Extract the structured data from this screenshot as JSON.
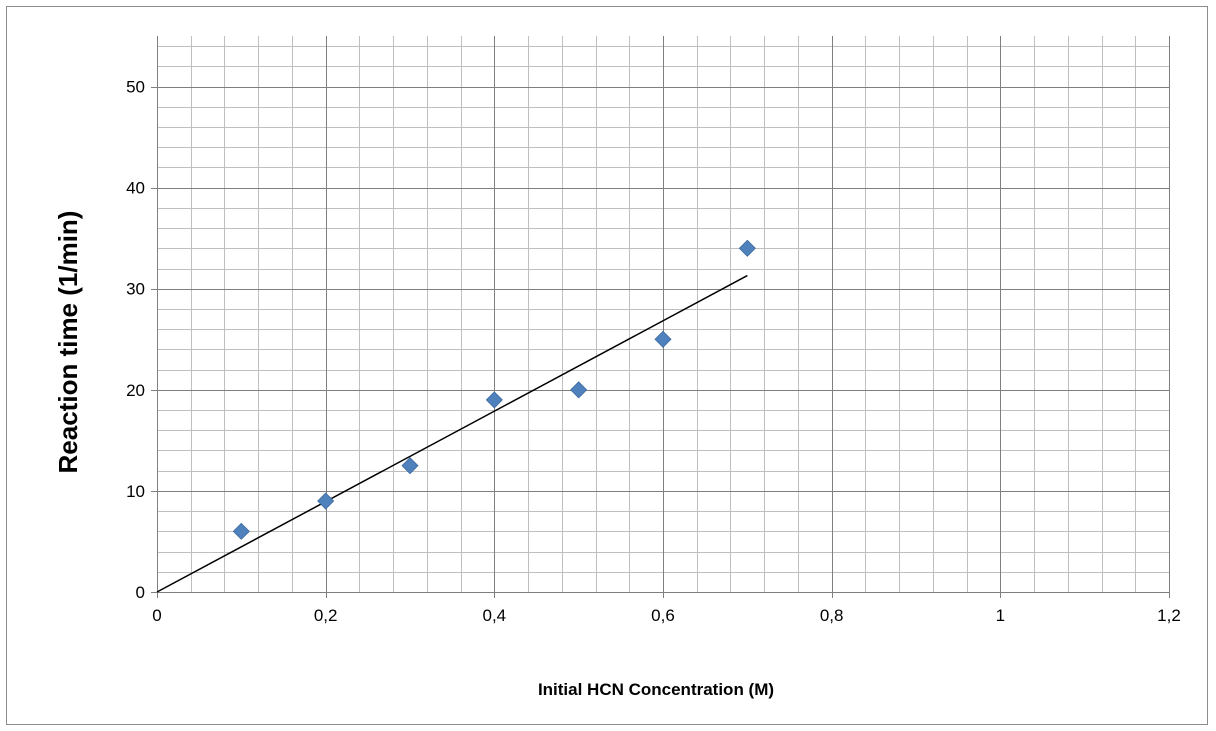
{
  "chart_data": {
    "type": "scatter",
    "xlabel": "Initial HCN Concentration (M)",
    "ylabel": "Reaction time (1/min)",
    "xlim": [
      0,
      1.2
    ],
    "ylim": [
      0,
      55
    ],
    "x_ticks": [
      0,
      0.2,
      0.4,
      0.6,
      0.8,
      1,
      1.2
    ],
    "x_tick_labels": [
      "0",
      "0,2",
      "0,4",
      "0,6",
      "0,8",
      "1",
      "1,2"
    ],
    "y_ticks": [
      0,
      10,
      20,
      30,
      40,
      50
    ],
    "y_tick_labels": [
      "0",
      "10",
      "20",
      "30",
      "40",
      "50"
    ],
    "grid": true,
    "legend": "none",
    "marker": "diamond",
    "marker_color": "#4f81bd",
    "series": [
      {
        "x": [
          0.1,
          0.2,
          0.3,
          0.4,
          0.5,
          0.6,
          0.7
        ],
        "y": [
          6,
          9,
          12.5,
          19,
          20,
          25,
          34
        ]
      }
    ],
    "trendline": {
      "type": "linear",
      "x": [
        0,
        0.7
      ],
      "y": [
        0,
        31.3
      ],
      "color": "#000000"
    }
  }
}
